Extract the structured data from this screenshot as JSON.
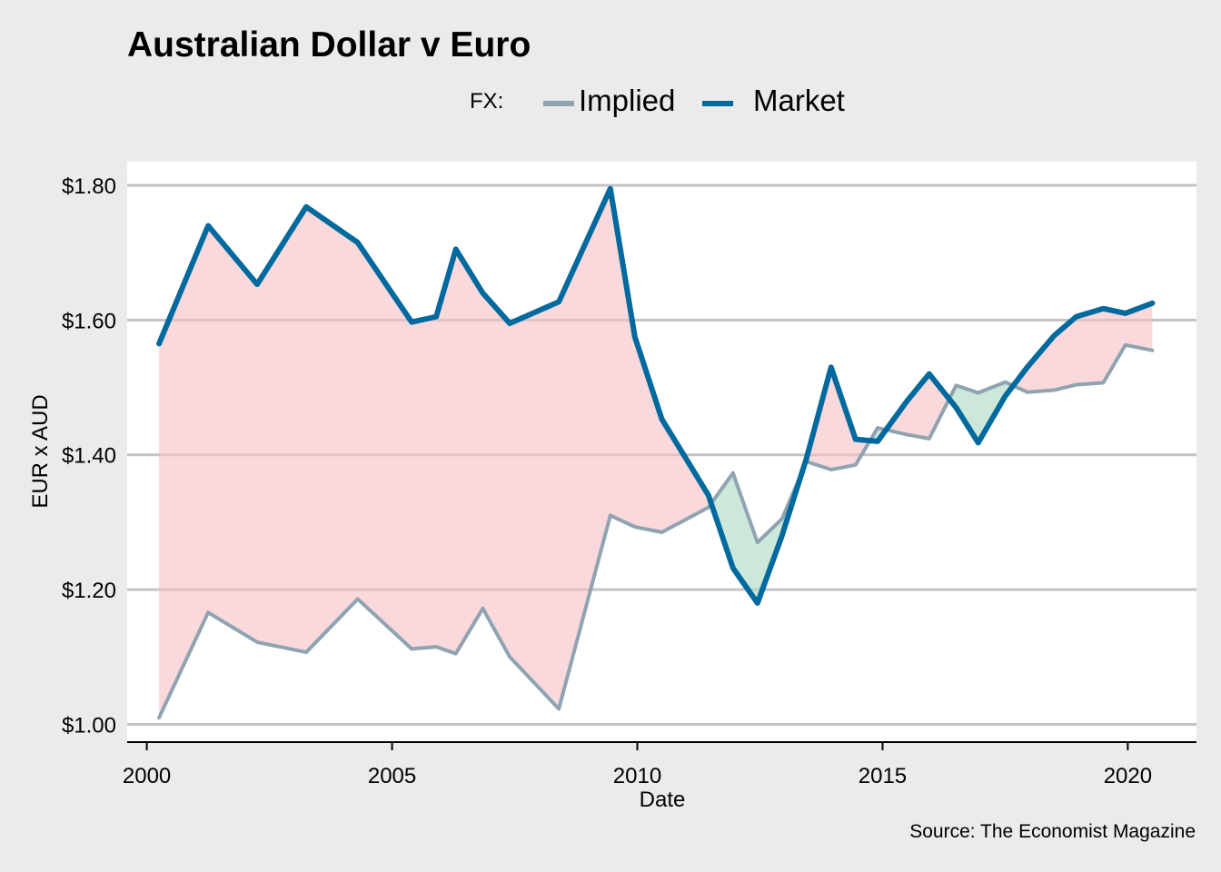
{
  "chart_data": {
    "type": "line",
    "title": "Australian Dollar v Euro",
    "xlabel": "Date",
    "ylabel": "EUR x AUD",
    "source": "Source: The Economist Magazine",
    "legend_title": "FX:",
    "legend_position": "top",
    "xlim": [
      1999.6,
      2021.4
    ],
    "ylim": [
      0.975,
      1.835
    ],
    "x_ticks": [
      2000,
      2005,
      2010,
      2015,
      2020
    ],
    "x_tick_labels": [
      "2000",
      "2005",
      "2010",
      "2015",
      "2020"
    ],
    "y_ticks": [
      1.0,
      1.2,
      1.4,
      1.6,
      1.8
    ],
    "y_tick_labels": [
      "$1.00",
      "$1.20",
      "$1.40",
      "$1.60",
      "$1.80"
    ],
    "grid": "horizontal",
    "x": [
      2000.25,
      2001.25,
      2002.25,
      2003.25,
      2004.3,
      2005.4,
      2005.9,
      2006.3,
      2006.85,
      2007.4,
      2008.4,
      2009.45,
      2009.95,
      2010.5,
      2011.45,
      2011.95,
      2012.45,
      2012.95,
      2013.45,
      2013.95,
      2014.45,
      2014.9,
      2015.5,
      2015.95,
      2016.5,
      2016.95,
      2017.5,
      2017.95,
      2018.5,
      2018.95,
      2019.5,
      2019.95,
      2020.5
    ],
    "series": [
      {
        "name": "Implied",
        "color": "#8fa3b1",
        "values": [
          1.01,
          1.166,
          1.122,
          1.107,
          1.186,
          1.112,
          1.115,
          1.105,
          1.172,
          1.1,
          1.023,
          1.31,
          1.293,
          1.285,
          1.322,
          1.373,
          1.27,
          1.305,
          1.39,
          1.378,
          1.385,
          1.44,
          1.43,
          1.424,
          1.503,
          1.492,
          1.508,
          1.493,
          1.496,
          1.504,
          1.507,
          1.563,
          1.555
        ]
      },
      {
        "name": "Market",
        "color": "#00699e",
        "values": [
          1.565,
          1.74,
          1.653,
          1.768,
          1.715,
          1.597,
          1.605,
          1.705,
          1.64,
          1.595,
          1.627,
          1.795,
          1.575,
          1.453,
          1.34,
          1.232,
          1.18,
          1.28,
          1.395,
          1.53,
          1.423,
          1.42,
          1.48,
          1.52,
          1.47,
          1.418,
          1.487,
          1.53,
          1.577,
          1.605,
          1.617,
          1.61,
          1.625
        ]
      }
    ],
    "fill_colors": {
      "market_above": "#f5c0c4",
      "market_below": "#a9d8c2"
    }
  }
}
